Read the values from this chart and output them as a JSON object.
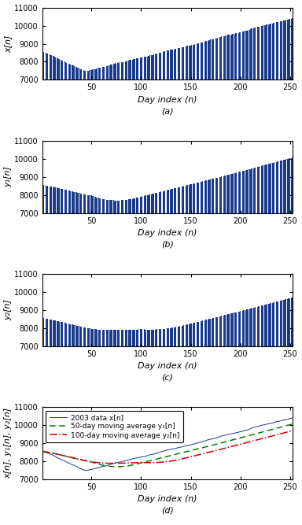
{
  "n_days": 252,
  "ylim": [
    7000,
    11000
  ],
  "xlim": [
    1,
    252
  ],
  "xticks": [
    50,
    100,
    150,
    200,
    250
  ],
  "yticks": [
    7000,
    8000,
    9000,
    10000,
    11000
  ],
  "xlabel": "Day index (n)",
  "ylabel_a": "x[n]",
  "ylabel_b": "y₁[n]",
  "ylabel_c": "y₂[n]",
  "ylabel_d": "x[n], y₁[n], y₂[n]",
  "bar_color": "#1a3a8c",
  "line_color_x": "#1a3a8c",
  "line_color_y1": "#008000",
  "line_color_y2": "#cc0000",
  "legend_x": "2003 data x[n]",
  "legend_y1": "50-day moving average y₁[n]",
  "legend_y2": "100-day moving average y₂[n]",
  "subplot_labels": [
    "(a)",
    "(b)",
    "(c)",
    "(d)"
  ],
  "tick_fontsize": 7,
  "label_fontsize": 8,
  "legend_fontsize": 6.5,
  "bar_bottom": 7000,
  "bar_width": 0.7
}
